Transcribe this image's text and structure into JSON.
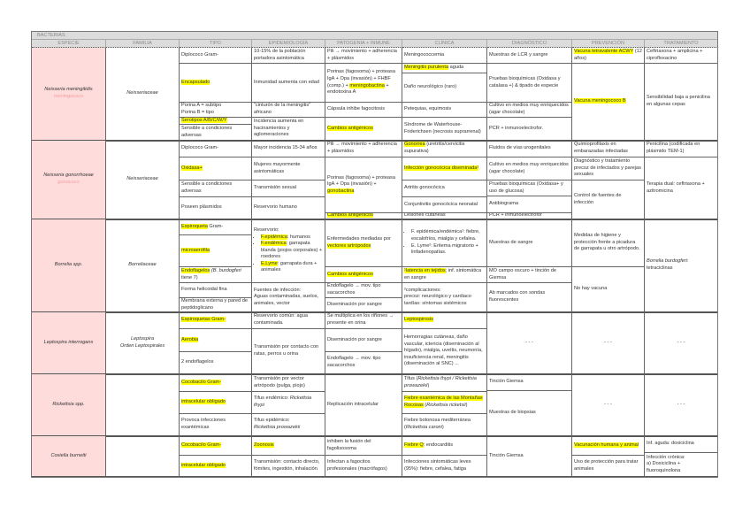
{
  "title": "BACTERIAS",
  "columns": [
    "ESPECIE",
    "FAMILIA",
    "TIPO",
    "EPIDEMIOLOGÍA",
    "PATOGENIA + INMUNE",
    "CLÍNICA",
    "DIAGNÓSTICO",
    "PREVENCIÓN",
    "TRATAMIENTO"
  ],
  "colors": {
    "highlight": "#ffff00",
    "species_bg": "#ffdcdc",
    "header_bg": "#dcdcdc",
    "alias_text": "#f4a0a0"
  },
  "bacteria": [
    {
      "especie": [
        {
          "t": "Neisseria meningitidis",
          "i": 1
        },
        {
          "t": "meningococo",
          "i": 1,
          "pink": 1,
          "br": 1
        }
      ],
      "familia": [
        {
          "t": "Neisseriaceae",
          "i": 1
        }
      ],
      "tipo": [
        [
          {
            "t": "Diplococo Gram-"
          }
        ],
        [
          {
            "t": "Encapsulado",
            "hl": 1
          }
        ],
        [
          {
            "t": "Porina A = subtipo\nPorina B = tipo"
          }
        ],
        [
          {
            "t": "Serotipos A/B/C/W/Y",
            "hl": 1
          }
        ],
        [
          {
            "t": "Sensible a condiciones adversas"
          }
        ]
      ],
      "epidemiologia": [
        [
          {
            "t": "10-15% de la población portadora asintomática"
          }
        ],
        [
          {
            "t": "Inmunidad aumenta con edad"
          }
        ],
        [
          {
            "t": "“cinturón de la meningitis” africano"
          }
        ],
        [
          {
            "t": "Incidencia aumenta en hacinamientos y aglomeraciones"
          }
        ]
      ],
      "patogenia": [
        [
          {
            "t": "Pili → movimiento + adherencia + plásmidos"
          }
        ],
        [
          {
            "t": "Porinas (fagosoma) + proteasa IgA + Opa (invasión) + FHBF (comp.) + "
          },
          {
            "t": "meningobactina",
            "hl": 1
          },
          {
            "t": " + endotoxina A"
          }
        ],
        [
          {
            "t": "Cápsula inhibe fagocitosis"
          }
        ],
        [
          {
            "t": "Cambios antigénicos",
            "hl": 1
          }
        ]
      ],
      "clinica": [
        [
          {
            "t": "Meningococcemia"
          }
        ],
        [
          {
            "t": "Meningitis purulenta",
            "hl": 1
          },
          {
            "t": " aguda"
          }
        ],
        [
          {
            "t": "Daño neurológico (raro)"
          }
        ],
        [
          {
            "t": "Petequias, equimosis"
          }
        ],
        [
          {
            "t": "Síndrome de Waterhouse-Friderichsen (necrosis suprarrenal)"
          }
        ]
      ],
      "diagnostico": [
        [
          {
            "t": "Muestras de LCR y sangre"
          }
        ],
        [
          {
            "t": "Pruebas bioquímicas (Oxidasa y catalasa +) & tipado de especie"
          }
        ],
        [
          {
            "t": "Cultivo en medios muy enriquecidos (agar chocolate)"
          }
        ],
        [
          {
            "t": "PCR + inmunoelectrofor."
          }
        ]
      ],
      "prevencion": [
        [
          {
            "t": "Vacuna tetravalente ACWY",
            "hl": 1
          },
          {
            "t": " (12 años)"
          }
        ],
        [
          {
            "t": "Vacuna meningococo B",
            "hl": 1
          }
        ]
      ],
      "tratamiento": [
        [
          {
            "t": "Ceftriaxona + amplicina + ciprofloxacino"
          }
        ],
        [
          {
            "t": "Sensibilidad baja a penicilina en algunas cepas"
          }
        ]
      ]
    },
    {
      "especie": [
        {
          "t": "Neisseria gonorrhoeae",
          "i": 1
        },
        {
          "t": "gonococo",
          "i": 1,
          "pink": 1,
          "br": 1
        }
      ],
      "familia": [
        {
          "t": "Neisseriaceae",
          "i": 1
        }
      ],
      "tipo": [
        [
          {
            "t": "Diplococo Gram-"
          }
        ],
        [
          {
            "t": "Oxidasa+",
            "hl": 1
          }
        ],
        [
          {
            "t": "Sensible a condiciones adversas"
          }
        ],
        [
          {
            "t": "Poseen plásmidos"
          }
        ]
      ],
      "epidemiologia": [
        [
          {
            "t": "Mayor incidencia 15-34 años"
          }
        ],
        [
          {
            "t": "Mujeres mayormente asintomáticas"
          }
        ],
        [
          {
            "t": "Transmisión sexual"
          }
        ],
        [
          {
            "t": "Reservorio humano"
          }
        ]
      ],
      "patogenia": [
        [
          {
            "t": "Pili → movimiento + adherencia + plásmidos"
          }
        ],
        [
          {
            "t": "Porinas (fagosoma) + proteasa IgA + Opa (invasión) + "
          },
          {
            "t": "gonobactina",
            "hl": 1
          }
        ],
        [
          {
            "t": "Cambios antigénicos",
            "hl": 1
          }
        ]
      ],
      "clinica": [
        [
          {
            "t": "Gonorrea",
            "hl": 1
          },
          {
            "t": " (uretritis/cervicitis supurativa)"
          }
        ],
        [
          {
            "t": "Infección gonocócica diseminada¹",
            "hl": 1
          }
        ],
        [
          {
            "t": "Artritis gonocócica"
          }
        ],
        [
          {
            "t": "Conjuntivitis gonocócica neonatal"
          }
        ],
        [
          {
            "t": "Lesiones cutáneas"
          }
        ]
      ],
      "diagnostico": [
        [
          {
            "t": "Fluidos de vías urogenitales"
          }
        ],
        [
          {
            "t": "Cultivo en medios muy enriquecidos (agar chocolate)"
          }
        ],
        [
          {
            "t": "Pruebas bioquímicas (Oxidasa+ y uso de glucosa)"
          }
        ],
        [
          {
            "t": "Antibiograma"
          }
        ],
        [
          {
            "t": "PCR + inmunoelectrofor"
          }
        ]
      ],
      "prevencion": [
        [
          {
            "t": "Quimioprofilaxis en embarazadas infectadas"
          }
        ],
        [
          {
            "t": "Diagnóstico y tratamiento precoz de infectados y parejas sexuales"
          }
        ],
        [
          {
            "t": "Control de fuentes de infección"
          }
        ]
      ],
      "tratamiento": [
        [
          {
            "t": "Penicilina (codificada en plásmido TEM-1)"
          }
        ],
        [
          {
            "t": "Terapia dual: ceftriaxona + azitromicina"
          }
        ]
      ]
    },
    {
      "especie": [
        {
          "t": "Borrelia spp.",
          "i": 1
        }
      ],
      "familia": [
        {
          "t": "Borreliaceae",
          "i": 1
        }
      ],
      "tipo": [
        [
          {
            "t": "Espiroqueta",
            "hl": 1
          },
          {
            "t": " Gram-"
          }
        ],
        [
          {
            "t": "microaerófila",
            "hl": 1
          }
        ],
        [
          {
            "t": "Endoflagelos",
            "hl": 1
          },
          {
            "t": " (B. burdogferi",
            "i": 1
          },
          {
            "t": " tiene 7)"
          }
        ],
        [
          {
            "t": "Forma helicoidal fina"
          }
        ],
        [
          {
            "t": "Membrana externa y pared de peptidoglicano"
          }
        ]
      ],
      "epidemiologia": [
        {
          "head": [
            {
              "t": "Reservorio:"
            }
          ],
          "list": [
            [
              {
                "t": "F.epidémica",
                "hl": 1
              },
              {
                "t": ": humanos"
              }
            ],
            [
              {
                "t": "F.endémica",
                "hl": 1
              },
              {
                "t": ": garrapata blanda (piojos corporales) + roedores"
              }
            ],
            [
              {
                "t": "E.Lyme",
                "hl": 1
              },
              {
                "t": ": garrapata dura + animales"
              }
            ]
          ]
        },
        [
          {
            "t": "Fuentes de infección:\nAguas contaminadas, suelos, animales, vector"
          }
        ]
      ],
      "patogenia": [
        [
          {
            "t": "Enfermedades mediadas por "
          },
          {
            "t": "vectores artrópodos",
            "hl": 1
          }
        ],
        [
          {
            "t": "Cambios antigénicos",
            "hl": 1
          }
        ],
        [
          {
            "t": "Endoflagelo → mov. tipo sacacorchos"
          }
        ],
        [
          {
            "t": "Diseminación por sangre"
          }
        ]
      ],
      "clinica": [
        {
          "list": [
            [
              {
                "t": "F. epidémica/endémica¹: fiebre, escalofríos, mialgia y cefalea."
              }
            ],
            [
              {
                "t": "E. Lyme²: Eritema migratorio + linfadenopatías."
              }
            ]
          ]
        },
        [
          {
            "t": "¹latencia en tejidos",
            "hl": 1
          },
          {
            "t": "; inf. sintomática en sangre"
          }
        ],
        [
          {
            "t": "²complicaciones:\nprecoz: neurológico y cardiaco\ntardías: síntomas sistémicos"
          }
        ]
      ],
      "diagnostico": [
        [
          {
            "t": "Muestras de sangre"
          }
        ],
        [
          {
            "t": "MO campo oscuro + tinción de Giemsa"
          }
        ],
        [
          {
            "t": "Ab marcados con sondas fluorescentes"
          }
        ]
      ],
      "prevencion": [
        [
          {
            "t": "Medidas de higiene y protección frente a picadura de garrapata u otro artrópodo."
          }
        ],
        [
          {
            "t": "No hay vacuna"
          }
        ]
      ],
      "tratamiento": [
        [
          {
            "t": "Borrelia burdogferi",
            "i": 1
          },
          {
            "t": ": tetraciclinas"
          }
        ]
      ]
    },
    {
      "especie": [
        {
          "t": "Leptospira interrogans",
          "i": 1
        }
      ],
      "familia": [
        {
          "t": "Leptospira",
          "i": 1
        },
        {
          "t": "Orden Leptospirales",
          "i": 1,
          "br": 1
        }
      ],
      "tipo": [
        [
          {
            "t": "Espiroquetas Gram-",
            "hl": 1
          }
        ],
        [
          {
            "t": "Aerobia",
            "hl": 1
          }
        ],
        [
          {
            "t": "2 endoflagelos"
          }
        ]
      ],
      "epidemiologia": [
        [
          {
            "t": "Reservorio común: agua contaminada."
          }
        ],
        [
          {
            "t": "Transmisión por contacto con ratas, perros u orina"
          }
        ]
      ],
      "patogenia": [
        [
          {
            "t": "Se multiplica en los riñones → presente en orina"
          }
        ],
        [
          {
            "t": "Diseminación por sangre"
          }
        ],
        [
          {
            "t": "Endoflagelo → mov. tipo sacacorchos"
          }
        ]
      ],
      "clinica": [
        [
          {
            "t": "Leptospirosis",
            "hl": 1
          }
        ],
        [
          {
            "t": "Hemorragias cutáneas, daño vascular, ictericia (diseminación al hígado), mialgia, uveítis, neumonía, insuficiencia renal, meningitis (diseminación al SNC) ..."
          }
        ]
      ],
      "diagnostico": [
        [
          {
            "t": "- - -"
          }
        ]
      ],
      "prevencion": [
        [
          {
            "t": "- - -"
          }
        ]
      ],
      "tratamiento": [
        [
          {
            "t": "- - -"
          }
        ]
      ]
    },
    {
      "especie": [
        {
          "t": "Rickettsia spp.",
          "i": 1
        }
      ],
      "familia": [],
      "tipo": [
        [
          {
            "t": "Cocobacilo Gram-",
            "hl": 1
          }
        ],
        [
          {
            "t": "intracelular obligado",
            "hl": 1
          }
        ],
        [
          {
            "t": "Provoca infecciones exantémicas"
          }
        ]
      ],
      "epidemiologia": [
        [
          {
            "t": "Transmisión por vector artrópodo (pulga, piojo)"
          }
        ],
        [
          {
            "t": "Tifus endémico: "
          },
          {
            "t": "Rickettsia thypi",
            "i": 1
          }
        ],
        [
          {
            "t": "Tifus epidémico:\n"
          },
          {
            "t": "Rickettsia prowazekii",
            "i": 1
          }
        ]
      ],
      "patogenia": [
        [
          {
            "t": "Replicación intracelular"
          }
        ]
      ],
      "clinica": [
        [
          {
            "t": "Tifus ("
          },
          {
            "t": "Rickettsia thypi / Rickettsia prowazekii",
            "i": 1
          },
          {
            "t": ")"
          }
        ],
        [
          {
            "t": "Fiebre exantémica de las Montañas Rocosas",
            "hl": 1
          },
          {
            "t": " ("
          },
          {
            "t": "Rickettsia ricketsii",
            "i": 1
          },
          {
            "t": ")"
          }
        ],
        [
          {
            "t": "Fiebre botonosa mediterránea ("
          },
          {
            "t": "Rickettsia caroni",
            "i": 1
          },
          {
            "t": ")"
          }
        ]
      ],
      "diagnostico": [
        [
          {
            "t": "Tinción Giemsa"
          }
        ],
        [
          {
            "t": "Muestras de biopsias"
          }
        ]
      ],
      "prevencion": [
        [
          {
            "t": "- - -"
          }
        ]
      ],
      "tratamiento": [
        [
          {
            "t": "- - -"
          }
        ]
      ]
    },
    {
      "especie": [
        {
          "t": "Coxiella burnetti",
          "i": 1
        }
      ],
      "familia": [],
      "tipo": [
        [
          {
            "t": "Cocobacilo Gram-",
            "hl": 1
          }
        ],
        [
          {
            "t": "intracelular obligado",
            "hl": 1
          }
        ]
      ],
      "epidemiologia": [
        [
          {
            "t": "Zoonosis",
            "hl": 1
          }
        ],
        [
          {
            "t": "Transmisión: contacto directo, fómites, ingestión, inhalación"
          }
        ]
      ],
      "patogenia": [
        [
          {
            "t": "inhiben la fusión del fagolisosoma"
          }
        ],
        [
          {
            "t": "Infectan a fagocitos profesionales (macrófagos)"
          }
        ]
      ],
      "clinica": [
        [
          {
            "t": "Fiebre Q",
            "hl": 1
          },
          {
            "t": ": endocarditis"
          }
        ],
        [
          {
            "t": "Infecciones sintomáticas leves (95%): fiebre, cefalea, fatiga"
          }
        ]
      ],
      "diagnostico": [
        [
          {
            "t": "Tinción Giemsa"
          }
        ]
      ],
      "prevencion": [
        [
          {
            "t": "Vacunación humana y animal",
            "hl": 1
          }
        ],
        [
          {
            "t": "Uso de protección para tratar animales"
          }
        ]
      ],
      "tratamiento": [
        [
          {
            "t": "Inf. aguda: doxiciclina"
          }
        ],
        [
          {
            "t": "Infección crónica:\na)  Doxiciclina +\n      fluoroquinolona"
          }
        ]
      ]
    }
  ]
}
